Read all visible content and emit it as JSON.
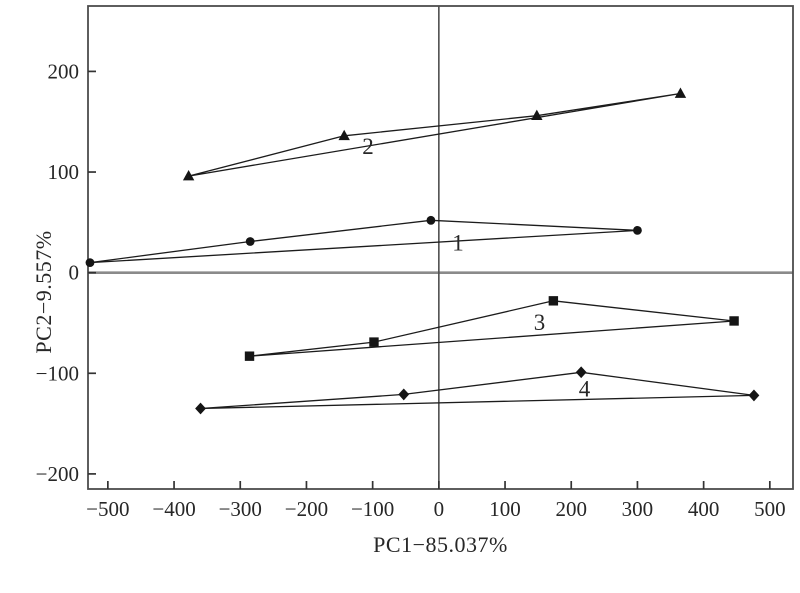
{
  "figure": {
    "background": "#ffffff"
  },
  "chart_data": {
    "type": "scatter",
    "title": "",
    "xlabel": "PC1−85.037%",
    "ylabel": "PC2−9.557%",
    "xlim": [
      -530,
      535
    ],
    "ylim": [
      -215,
      265
    ],
    "grid": false,
    "legend_position": "none",
    "zero_lines": true,
    "x_ticks": [
      {
        "v": -500,
        "label": "−500"
      },
      {
        "v": -400,
        "label": "−400"
      },
      {
        "v": -300,
        "label": "−300"
      },
      {
        "v": -200,
        "label": "−200"
      },
      {
        "v": -100,
        "label": "−100"
      },
      {
        "v": 0,
        "label": "0"
      },
      {
        "v": 100,
        "label": "100"
      },
      {
        "v": 200,
        "label": "200"
      },
      {
        "v": 300,
        "label": "300"
      },
      {
        "v": 400,
        "label": "400"
      },
      {
        "v": 500,
        "label": "500"
      }
    ],
    "y_ticks": [
      {
        "v": 200,
        "label": "200"
      },
      {
        "v": 100,
        "label": "100"
      },
      {
        "v": 0,
        "label": "0"
      },
      {
        "v": -100,
        "label": "−100"
      },
      {
        "v": -200,
        "label": "−200"
      }
    ],
    "series": [
      {
        "name": "group-1",
        "marker": "circle",
        "label": "1",
        "label_xy": [
          29,
          30
        ],
        "closed": true,
        "points": [
          [
            -527,
            10
          ],
          [
            -285,
            31
          ],
          [
            -12,
            52
          ],
          [
            300,
            42
          ]
        ]
      },
      {
        "name": "group-2",
        "marker": "triangle",
        "label": "2",
        "label_xy": [
          -107,
          126
        ],
        "closed": true,
        "points": [
          [
            -378,
            96
          ],
          [
            -143,
            136
          ],
          [
            148,
            156
          ],
          [
            365,
            178
          ]
        ]
      },
      {
        "name": "group-3",
        "marker": "square",
        "label": "3",
        "label_xy": [
          152,
          -49
        ],
        "closed": true,
        "points": [
          [
            -286,
            -83
          ],
          [
            -98,
            -69
          ],
          [
            173,
            -28
          ],
          [
            446,
            -48
          ]
        ]
      },
      {
        "name": "group-4",
        "marker": "diamond",
        "label": "4",
        "label_xy": [
          220,
          -115
        ],
        "closed": true,
        "points": [
          [
            -360,
            -135
          ],
          [
            -53,
            -121
          ],
          [
            215,
            -99
          ],
          [
            476,
            -122
          ]
        ]
      }
    ],
    "colors": {
      "stroke": "#1c1c1c",
      "marker": "#151515",
      "zero_line_h": "#8a8a8a",
      "zero_line_v": "#4f4f4f",
      "frame": "#4d4d4d",
      "tick": "#333333",
      "text": "#272727"
    }
  }
}
